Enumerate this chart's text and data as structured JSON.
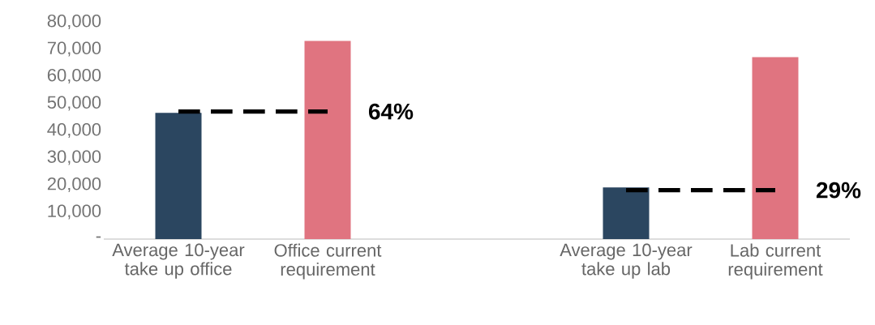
{
  "chart_data": {
    "type": "bar",
    "categories": [
      "Average 10-year take up office",
      "Office current requirement",
      null,
      "Average 10-year take up lab",
      "Lab current requirement"
    ],
    "series": [
      {
        "colors": [
          "#2b4660",
          "#e07480",
          null,
          "#2b4660",
          "#e07480"
        ],
        "values": [
          46500,
          73000,
          null,
          19000,
          67000
        ]
      },
      {
        "type": "line",
        "color": "#000000",
        "line_style": "dashed",
        "values": [
          47000,
          47000,
          null,
          null,
          null
        ]
      },
      {
        "type": "line",
        "color": "#000000",
        "line_style": "dashed",
        "values": [
          null,
          null,
          null,
          18000,
          18000
        ]
      }
    ],
    "ylim": [
      0,
      80000
    ],
    "yticks": [
      {
        "value": 0,
        "label": "-"
      },
      {
        "value": 10000,
        "label": "10,000"
      },
      {
        "value": 20000,
        "label": "20,000"
      },
      {
        "value": 30000,
        "label": "30,000"
      },
      {
        "value": 40000,
        "label": "40,000"
      },
      {
        "value": 50000,
        "label": "50,000"
      },
      {
        "value": 60000,
        "label": "60,000"
      },
      {
        "value": 70000,
        "label": "70,000"
      },
      {
        "value": 80000,
        "label": "80,000"
      }
    ],
    "annotations": [
      {
        "text": "64%",
        "x": "Office current requirement",
        "y": 47000
      },
      {
        "text": "29%",
        "x": "Lab current requirement",
        "y": 18000
      }
    ]
  }
}
